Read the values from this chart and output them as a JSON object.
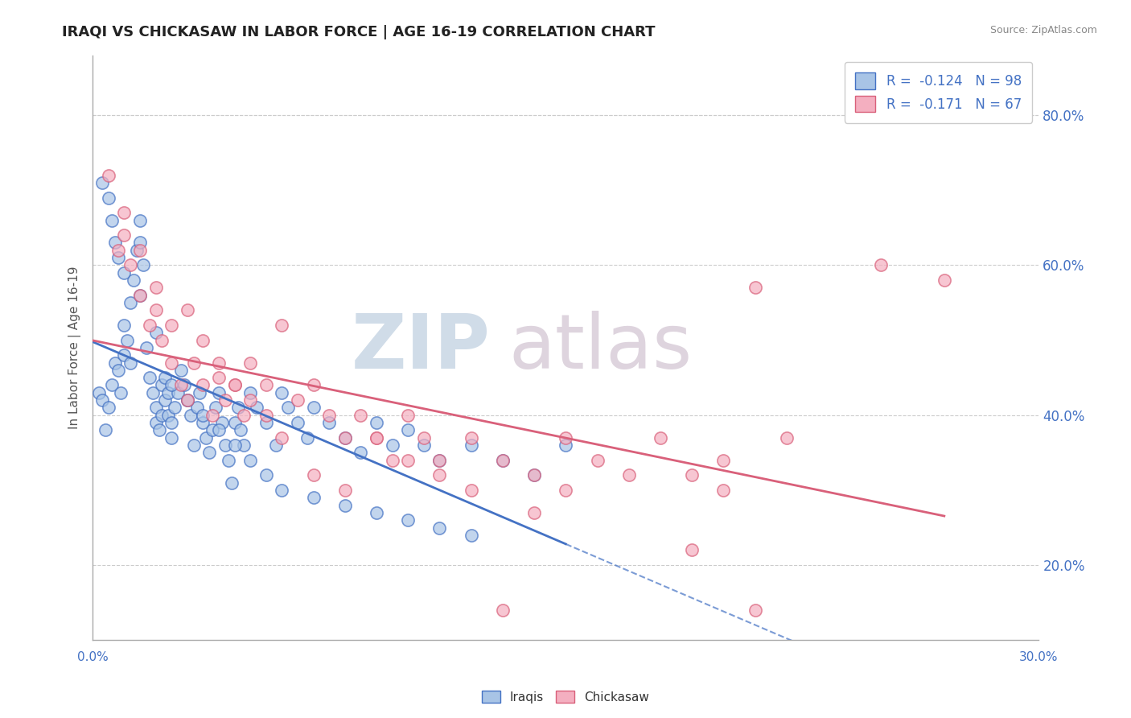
{
  "title": "IRAQI VS CHICKASAW IN LABOR FORCE | AGE 16-19 CORRELATION CHART",
  "source_text": "Source: ZipAtlas.com",
  "xmin": 0.0,
  "xmax": 30.0,
  "ymin": 10.0,
  "ymax": 88.0,
  "ylabel": "In Labor Force | Age 16-19",
  "ytick_vals": [
    20.0,
    40.0,
    60.0,
    80.0
  ],
  "iraqi_color": "#a8c4e6",
  "chickasaw_color": "#f4afc0",
  "iraqi_line_color": "#4472c4",
  "chickasaw_line_color": "#d9607a",
  "iraqi_scatter_x": [
    0.2,
    0.3,
    0.4,
    0.5,
    0.6,
    0.7,
    0.8,
    0.9,
    1.0,
    1.0,
    1.1,
    1.2,
    1.2,
    1.3,
    1.4,
    1.5,
    1.5,
    1.6,
    1.7,
    1.8,
    1.9,
    2.0,
    2.0,
    2.1,
    2.2,
    2.2,
    2.3,
    2.3,
    2.4,
    2.4,
    2.5,
    2.5,
    2.6,
    2.7,
    2.8,
    2.9,
    3.0,
    3.1,
    3.2,
    3.3,
    3.4,
    3.5,
    3.6,
    3.7,
    3.8,
    3.9,
    4.0,
    4.1,
    4.2,
    4.3,
    4.4,
    4.5,
    4.6,
    4.7,
    4.8,
    5.0,
    5.2,
    5.5,
    5.8,
    6.0,
    6.2,
    6.5,
    6.8,
    7.0,
    7.5,
    8.0,
    8.5,
    9.0,
    9.5,
    10.0,
    10.5,
    11.0,
    12.0,
    13.0,
    14.0,
    15.0,
    0.3,
    0.5,
    0.6,
    0.7,
    0.8,
    1.0,
    1.5,
    2.0,
    2.5,
    3.0,
    3.5,
    4.0,
    4.5,
    5.0,
    5.5,
    6.0,
    7.0,
    8.0,
    9.0,
    10.0,
    11.0,
    12.0
  ],
  "iraqi_scatter_y": [
    43,
    42,
    38,
    41,
    44,
    47,
    46,
    43,
    48,
    52,
    50,
    47,
    55,
    58,
    62,
    63,
    66,
    60,
    49,
    45,
    43,
    41,
    39,
    38,
    40,
    44,
    42,
    45,
    43,
    40,
    39,
    37,
    41,
    43,
    46,
    44,
    42,
    40,
    36,
    41,
    43,
    39,
    37,
    35,
    38,
    41,
    43,
    39,
    36,
    34,
    31,
    39,
    41,
    38,
    36,
    43,
    41,
    39,
    36,
    43,
    41,
    39,
    37,
    41,
    39,
    37,
    35,
    39,
    36,
    38,
    36,
    34,
    36,
    34,
    32,
    36,
    71,
    69,
    66,
    63,
    61,
    59,
    56,
    51,
    44,
    42,
    40,
    38,
    36,
    34,
    32,
    30,
    29,
    28,
    27,
    26,
    25,
    24
  ],
  "chickasaw_scatter_x": [
    0.5,
    0.8,
    1.0,
    1.2,
    1.5,
    1.8,
    2.0,
    2.2,
    2.5,
    2.8,
    3.0,
    3.2,
    3.5,
    3.8,
    4.0,
    4.2,
    4.5,
    4.8,
    5.0,
    5.5,
    6.0,
    6.5,
    7.0,
    7.5,
    8.0,
    8.5,
    9.0,
    9.5,
    10.0,
    10.5,
    11.0,
    12.0,
    13.0,
    14.0,
    15.0,
    16.0,
    17.0,
    18.0,
    19.0,
    20.0,
    21.0,
    22.0,
    1.0,
    1.5,
    2.0,
    2.5,
    3.0,
    3.5,
    4.0,
    4.5,
    5.0,
    5.5,
    6.0,
    7.0,
    8.0,
    9.0,
    10.0,
    11.0,
    12.0,
    13.0,
    14.0,
    15.0,
    19.0,
    20.0,
    21.0,
    25.0,
    27.0
  ],
  "chickasaw_scatter_y": [
    72,
    62,
    64,
    60,
    56,
    52,
    54,
    50,
    47,
    44,
    42,
    47,
    44,
    40,
    45,
    42,
    44,
    40,
    47,
    44,
    52,
    42,
    44,
    40,
    37,
    40,
    37,
    34,
    40,
    37,
    34,
    37,
    34,
    32,
    37,
    34,
    32,
    37,
    22,
    34,
    14,
    37,
    67,
    62,
    57,
    52,
    54,
    50,
    47,
    44,
    42,
    40,
    37,
    32,
    30,
    37,
    34,
    32,
    30,
    14,
    27,
    30,
    32,
    30,
    57,
    60,
    58
  ]
}
